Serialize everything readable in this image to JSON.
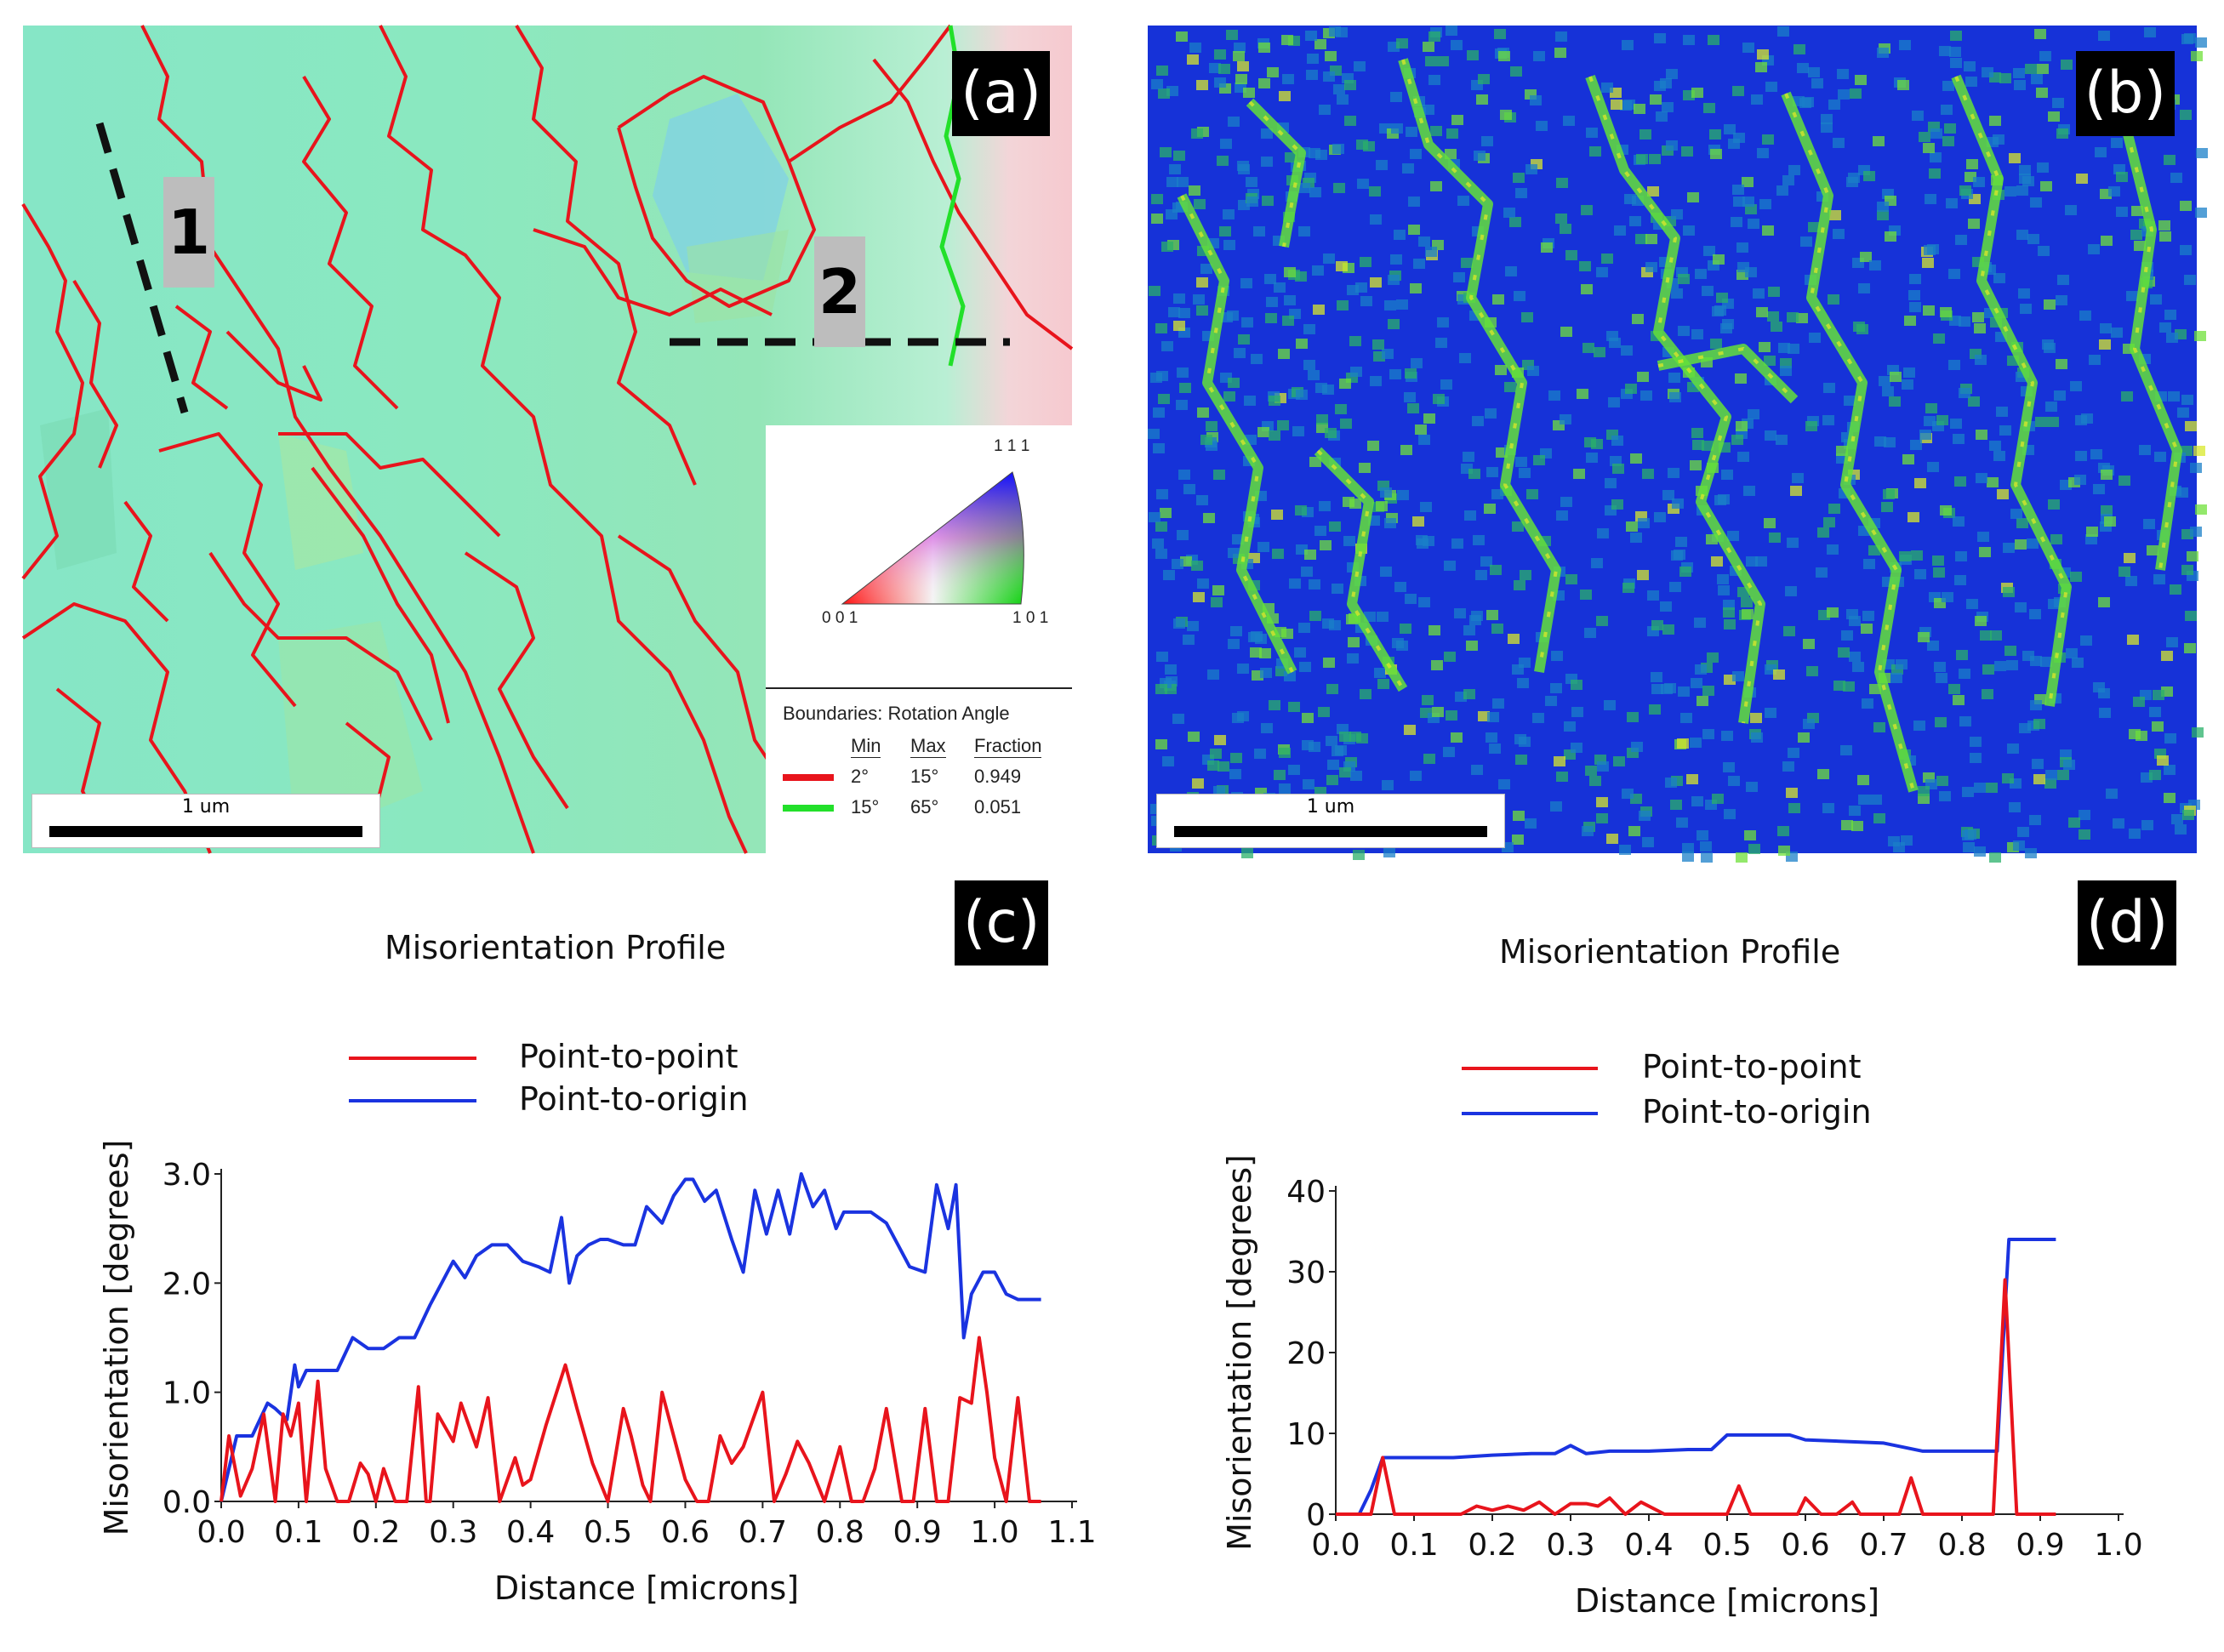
{
  "panels": {
    "a": {
      "tag": "(a)",
      "marker_1": "1",
      "marker_2": "2",
      "scale_label": "1 um",
      "ipf": {
        "top": "1 1 1",
        "left": "0 0 1",
        "right": "1 0 1"
      },
      "boundaries": {
        "title": "Boundaries: Rotation Angle",
        "headers": [
          "Min",
          "Max",
          "Fraction"
        ],
        "rows": [
          {
            "min": "2°",
            "max": "15°",
            "fraction": "0.949",
            "color": "#e8141c"
          },
          {
            "min": "15°",
            "max": "65°",
            "fraction": "0.051",
            "color": "#22e02a"
          }
        ]
      },
      "colors": {
        "boundary_low": "#e8141c",
        "boundary_high": "#22e02a"
      }
    },
    "b": {
      "tag": "(b)",
      "scale_label": "1 um"
    },
    "c": {
      "tag": "(c)"
    },
    "d": {
      "tag": "(d)"
    }
  },
  "chart_data": [
    {
      "type": "line",
      "title": "Misorientation Profile",
      "xlabel": "Distance [microns]",
      "ylabel": "Misorientation [degrees]",
      "xlim": [
        0.0,
        1.1
      ],
      "ylim": [
        0.0,
        3.0
      ],
      "xticks": [
        "0.0",
        "0.1",
        "0.2",
        "0.3",
        "0.4",
        "0.5",
        "0.6",
        "0.7",
        "0.8",
        "0.9",
        "1.0",
        "1.1"
      ],
      "yticks": [
        "0.0",
        "1.0",
        "2.0",
        "3.0"
      ],
      "legend_position": "top",
      "series": [
        {
          "name": "Point-to-point",
          "color": "#e8141c",
          "x": [
            0.0,
            0.01,
            0.025,
            0.04,
            0.055,
            0.07,
            0.08,
            0.09,
            0.1,
            0.11,
            0.125,
            0.135,
            0.15,
            0.165,
            0.18,
            0.19,
            0.2,
            0.21,
            0.225,
            0.24,
            0.255,
            0.265,
            0.27,
            0.28,
            0.3,
            0.31,
            0.33,
            0.345,
            0.36,
            0.38,
            0.39,
            0.4,
            0.42,
            0.445,
            0.46,
            0.48,
            0.5,
            0.52,
            0.53,
            0.545,
            0.555,
            0.57,
            0.585,
            0.6,
            0.615,
            0.63,
            0.645,
            0.66,
            0.675,
            0.7,
            0.715,
            0.73,
            0.745,
            0.76,
            0.78,
            0.8,
            0.815,
            0.83,
            0.845,
            0.86,
            0.88,
            0.895,
            0.91,
            0.925,
            0.94,
            0.955,
            0.97,
            0.98,
            0.99,
            1.0,
            1.015,
            1.03,
            1.045,
            1.06
          ],
          "y": [
            0.0,
            0.6,
            0.05,
            0.3,
            0.8,
            0.0,
            0.8,
            0.6,
            0.9,
            0.0,
            1.1,
            0.3,
            0.0,
            0.0,
            0.35,
            0.25,
            0.0,
            0.3,
            0.0,
            0.0,
            1.05,
            0.0,
            0.0,
            0.8,
            0.55,
            0.9,
            0.5,
            0.95,
            0.0,
            0.4,
            0.15,
            0.2,
            0.7,
            1.25,
            0.85,
            0.35,
            0.0,
            0.85,
            0.6,
            0.15,
            0.0,
            1.0,
            0.6,
            0.2,
            0.0,
            0.0,
            0.6,
            0.35,
            0.5,
            1.0,
            0.0,
            0.25,
            0.55,
            0.35,
            0.0,
            0.5,
            0.0,
            0.0,
            0.3,
            0.85,
            0.0,
            0.0,
            0.85,
            0.0,
            0.0,
            0.95,
            0.9,
            1.5,
            1.0,
            0.4,
            0.0,
            0.95,
            0.0,
            0.0
          ]
        },
        {
          "name": "Point-to-origin",
          "color": "#1a33e0",
          "x": [
            0.0,
            0.02,
            0.04,
            0.06,
            0.07,
            0.085,
            0.095,
            0.1,
            0.11,
            0.125,
            0.15,
            0.17,
            0.19,
            0.21,
            0.23,
            0.25,
            0.27,
            0.3,
            0.315,
            0.33,
            0.35,
            0.37,
            0.39,
            0.41,
            0.425,
            0.44,
            0.45,
            0.46,
            0.475,
            0.49,
            0.5,
            0.52,
            0.535,
            0.55,
            0.57,
            0.585,
            0.6,
            0.61,
            0.625,
            0.64,
            0.66,
            0.675,
            0.69,
            0.705,
            0.72,
            0.735,
            0.75,
            0.765,
            0.78,
            0.795,
            0.805,
            0.82,
            0.84,
            0.86,
            0.875,
            0.89,
            0.91,
            0.925,
            0.94,
            0.95,
            0.96,
            0.97,
            0.985,
            1.0,
            1.015,
            1.03,
            1.045,
            1.06
          ],
          "y": [
            0.0,
            0.6,
            0.6,
            0.9,
            0.85,
            0.75,
            1.25,
            1.05,
            1.2,
            1.2,
            1.2,
            1.5,
            1.4,
            1.4,
            1.5,
            1.5,
            1.8,
            2.2,
            2.05,
            2.25,
            2.35,
            2.35,
            2.2,
            2.15,
            2.1,
            2.6,
            2.0,
            2.25,
            2.35,
            2.4,
            2.4,
            2.35,
            2.35,
            2.7,
            2.55,
            2.8,
            2.95,
            2.95,
            2.75,
            2.85,
            2.4,
            2.1,
            2.85,
            2.45,
            2.85,
            2.45,
            3.0,
            2.7,
            2.85,
            2.5,
            2.65,
            2.65,
            2.65,
            2.55,
            2.35,
            2.15,
            2.1,
            2.9,
            2.5,
            2.9,
            1.5,
            1.9,
            2.1,
            2.1,
            1.9,
            1.85,
            1.85,
            1.85
          ]
        }
      ]
    },
    {
      "type": "line",
      "title": "Misorientation Profile",
      "xlabel": "Distance [microns]",
      "ylabel": "Misorientation [degrees]",
      "xlim": [
        0.0,
        1.0
      ],
      "ylim": [
        0,
        40
      ],
      "xticks": [
        "0.0",
        "0.1",
        "0.2",
        "0.3",
        "0.4",
        "0.5",
        "0.6",
        "0.7",
        "0.8",
        "0.9",
        "1.0"
      ],
      "yticks": [
        "0",
        "10",
        "20",
        "30",
        "40"
      ],
      "legend_position": "top",
      "series": [
        {
          "name": "Point-to-point",
          "color": "#e8141c",
          "x": [
            0.0,
            0.03,
            0.045,
            0.06,
            0.075,
            0.1,
            0.13,
            0.16,
            0.18,
            0.2,
            0.22,
            0.24,
            0.26,
            0.28,
            0.3,
            0.32,
            0.335,
            0.35,
            0.37,
            0.39,
            0.42,
            0.45,
            0.48,
            0.5,
            0.515,
            0.53,
            0.56,
            0.59,
            0.6,
            0.62,
            0.64,
            0.66,
            0.67,
            0.7,
            0.72,
            0.735,
            0.75,
            0.78,
            0.8,
            0.84,
            0.855,
            0.87,
            0.88,
            0.9,
            0.92
          ],
          "y": [
            0,
            0,
            0,
            7,
            0,
            0,
            0,
            0,
            1,
            0.5,
            1,
            0.5,
            1.5,
            0,
            1.3,
            1.3,
            1,
            2,
            0,
            1.5,
            0,
            0,
            0,
            0,
            3.5,
            0,
            0,
            0,
            2,
            0,
            0,
            1.5,
            0,
            0,
            0,
            4.5,
            0,
            0,
            0,
            0,
            29,
            0,
            0,
            0,
            0
          ]
        },
        {
          "name": "Point-to-origin",
          "color": "#1a33e0",
          "x": [
            0.0,
            0.03,
            0.045,
            0.06,
            0.1,
            0.15,
            0.2,
            0.25,
            0.28,
            0.3,
            0.32,
            0.35,
            0.4,
            0.45,
            0.48,
            0.5,
            0.55,
            0.58,
            0.6,
            0.65,
            0.7,
            0.75,
            0.8,
            0.845,
            0.86,
            0.87,
            0.9,
            0.92
          ],
          "y": [
            0,
            0,
            3,
            7,
            7,
            7,
            7.3,
            7.5,
            7.5,
            8.5,
            7.5,
            7.8,
            7.8,
            8,
            8,
            9.8,
            9.8,
            9.8,
            9.2,
            9,
            8.8,
            7.8,
            7.8,
            7.8,
            34,
            34,
            34,
            34
          ]
        }
      ]
    }
  ]
}
